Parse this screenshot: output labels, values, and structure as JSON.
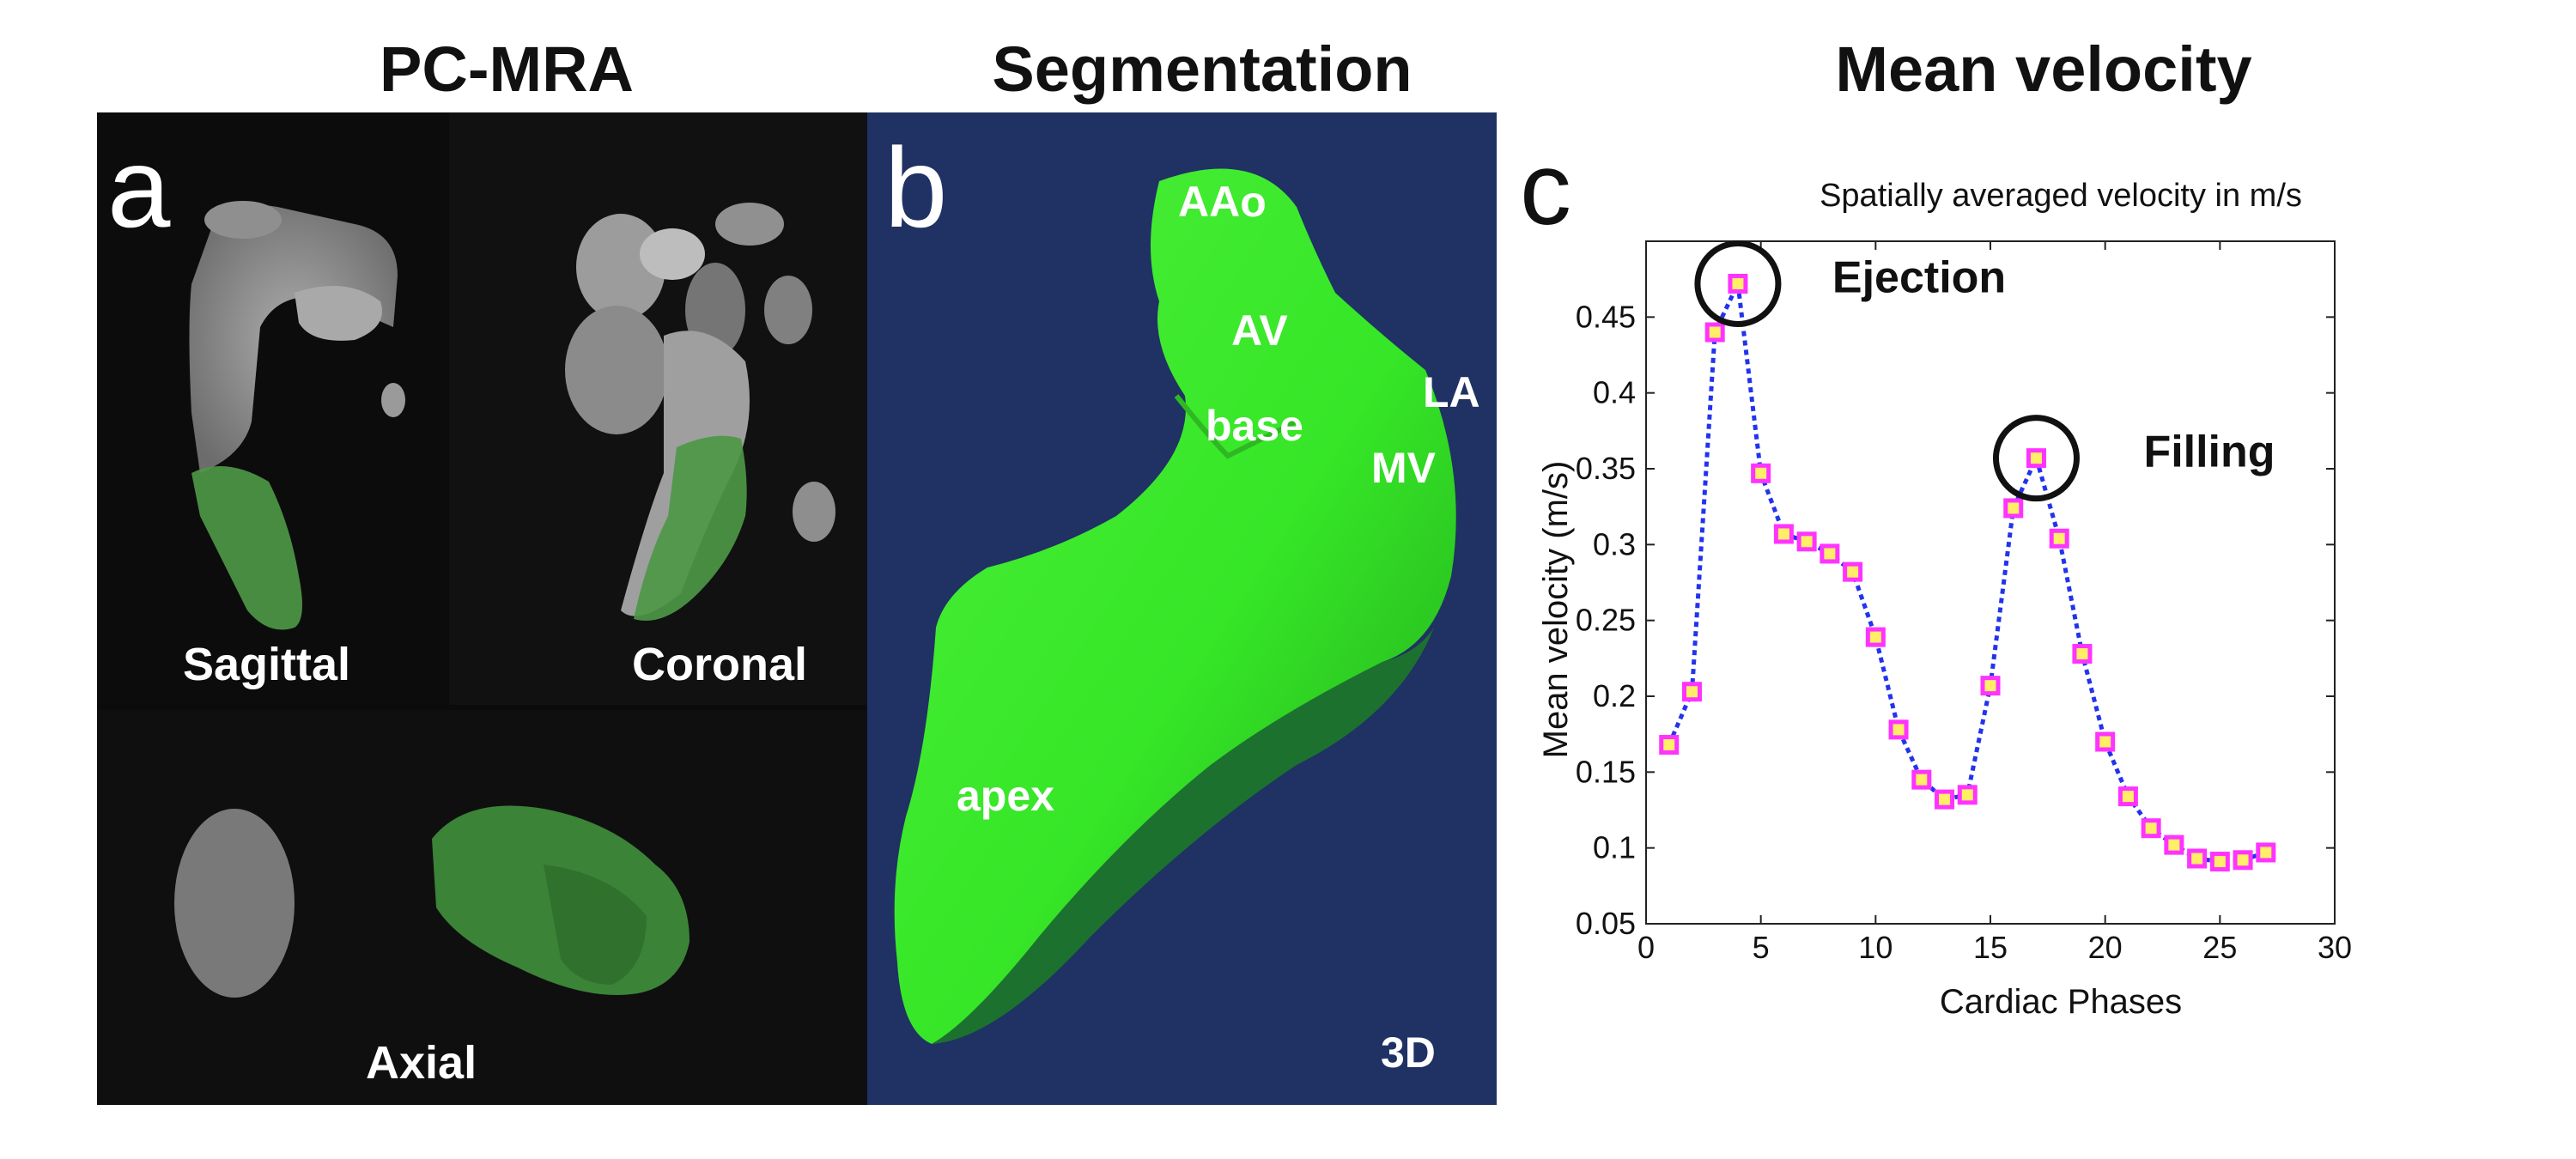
{
  "headers": {
    "left": "PC-MRA",
    "middle": "Segmentation",
    "right": "Mean velocity"
  },
  "panel_a": {
    "letter": "a",
    "views": {
      "sagittal": "Sagittal",
      "coronal": "Coronal",
      "axial": "Axial"
    }
  },
  "panel_b": {
    "letter": "b",
    "labels": {
      "aao": "AAo",
      "av": "AV",
      "la": "LA",
      "base": "base",
      "mv": "MV",
      "apex": "apex"
    },
    "tag": "3D",
    "background_color": "#1f3263",
    "mesh_color": "#35e826"
  },
  "panel_c": {
    "letter": "c"
  },
  "chart_data": {
    "type": "line",
    "title": "Spatially averaged velocity in m/s",
    "xlabel": "Cardiac Phases",
    "ylabel": "Mean velocity (m/s)",
    "xlim": [
      0,
      30
    ],
    "ylim": [
      0.05,
      0.5
    ],
    "xticks": [
      0,
      5,
      10,
      15,
      20,
      25,
      30
    ],
    "xtick_labels": [
      "0",
      "5",
      "10",
      "15",
      "20",
      "25",
      "30"
    ],
    "yticks": [
      0.05,
      0.1,
      0.15,
      0.2,
      0.25,
      0.3,
      0.35,
      0.4,
      0.45
    ],
    "ytick_labels": [
      "0.05",
      "0.1",
      "0.15",
      "0.2",
      "0.25",
      "0.3",
      "0.35",
      "0.4",
      "0.45"
    ],
    "series": [
      {
        "name": "Mean velocity",
        "x": [
          1,
          2,
          3,
          4,
          5,
          6,
          7,
          8,
          9,
          10,
          11,
          12,
          13,
          14,
          15,
          16,
          17,
          18,
          19,
          20,
          21,
          22,
          23,
          24,
          25,
          26,
          27
        ],
        "y": [
          0.168,
          0.203,
          0.44,
          0.472,
          0.347,
          0.307,
          0.302,
          0.294,
          0.282,
          0.239,
          0.178,
          0.145,
          0.132,
          0.135,
          0.207,
          0.324,
          0.357,
          0.304,
          0.228,
          0.17,
          0.134,
          0.113,
          0.102,
          0.093,
          0.091,
          0.092,
          0.097
        ],
        "line_color": "#2233ee",
        "marker_edge_color": "#ff33ff",
        "marker_face_color": "#ffee66"
      }
    ],
    "annotations": [
      {
        "text": "Ejection",
        "x": 4,
        "y": 0.472
      },
      {
        "text": "Filling",
        "x": 17,
        "y": 0.357
      }
    ]
  }
}
